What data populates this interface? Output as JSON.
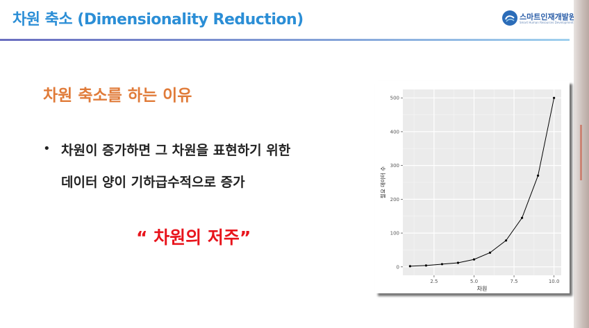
{
  "header": {
    "title": "차원 축소 (Dimensionality Reduction)",
    "logo_main": "스마트인재개발원",
    "logo_sub": "Smart Human Resources Development"
  },
  "content": {
    "heading": "차원 축소를 하는 이유",
    "bullet_symbol": "•",
    "bullet_line1": "차원이 증가하면 그 차원을 표현하기 위한",
    "bullet_line2": "데이터 양이 기하급수적으로 증가",
    "emphasis": "“ 차원의 저주”"
  },
  "colors": {
    "title_blue": "#2b8ed6",
    "heading_orange": "#e07b39",
    "emphasis_red": "#e8141c",
    "plot_panel": "#ebebeb"
  },
  "chart_data": {
    "type": "line",
    "x": [
      1,
      2,
      3,
      4,
      5,
      6,
      7,
      8,
      9,
      10
    ],
    "y": [
      2,
      4,
      8,
      12,
      22,
      42,
      78,
      145,
      270,
      500
    ],
    "xlabel": "차원",
    "ylabel": "필요 데이터 수",
    "xlim": [
      0.55,
      10.45
    ],
    "ylim": [
      -25,
      525
    ],
    "x_ticks": [
      2.5,
      5.0,
      7.5,
      10.0
    ],
    "x_tick_labels": [
      "2.5",
      "5.0",
      "7.5",
      "10.0"
    ],
    "y_ticks": [
      0,
      100,
      200,
      300,
      400,
      500
    ],
    "y_tick_labels": [
      "0",
      "100",
      "200",
      "300",
      "400",
      "500"
    ],
    "grid": true,
    "legend": "none"
  }
}
